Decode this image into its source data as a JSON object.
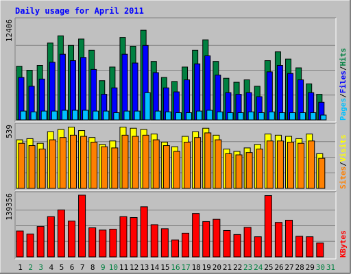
{
  "title": "Daily usage for April 2011",
  "colors": {
    "background": "#c0c0c0",
    "title": "#0000ff",
    "hits": "#008040",
    "files": "#0000ff",
    "pages": "#00c0ff",
    "visits": "#ffff00",
    "sites": "#ff8000",
    "kbytes": "#ff0000",
    "weekend_day": "#008040",
    "weekday_day": "#000000"
  },
  "panels": {
    "top": {
      "max_label": "12406",
      "legend": [
        "Pages",
        "/",
        "Files",
        "/",
        "Hits"
      ]
    },
    "middle": {
      "max_label": "539",
      "legend": [
        "Sites",
        "/",
        "Visits"
      ]
    },
    "bottom": {
      "max_label": "139356",
      "legend": [
        "KBytes"
      ]
    }
  },
  "chart_data": {
    "type": "bar",
    "title": "Daily usage for April 2011",
    "categories": [
      "1",
      "2",
      "3",
      "4",
      "5",
      "6",
      "7",
      "8",
      "9",
      "10",
      "11",
      "12",
      "13",
      "14",
      "15",
      "16",
      "17",
      "18",
      "19",
      "20",
      "21",
      "22",
      "23",
      "24",
      "25",
      "26",
      "27",
      "28",
      "29",
      "30",
      "31"
    ],
    "weekend_days": [
      "2",
      "3",
      "9",
      "10",
      "16",
      "17",
      "23",
      "24",
      "30",
      "31"
    ],
    "panels": [
      {
        "name": "top",
        "ylim": [
          0,
          12406
        ],
        "series": [
          {
            "name": "Hits",
            "values": [
              6700,
              6200,
              6800,
              9600,
              10500,
              9300,
              10100,
              8700,
              4900,
              6600,
              10300,
              9200,
              11200,
              7300,
              5300,
              4800,
              6600,
              8700,
              10000,
              7300,
              5200,
              4700,
              5000,
              4200,
              7400,
              8500,
              7600,
              6500,
              4500,
              3200,
              0
            ]
          },
          {
            "name": "Files",
            "values": [
              5300,
              4200,
              5100,
              7200,
              8200,
              7400,
              7800,
              6300,
              3200,
              4000,
              8200,
              7100,
              9300,
              5900,
              4000,
              3500,
              5000,
              7000,
              8000,
              5600,
              3400,
              3200,
              3400,
              2900,
              6000,
              6800,
              5800,
              5000,
              3400,
              2200,
              0
            ]
          },
          {
            "name": "Pages",
            "values": [
              1100,
              1000,
              1100,
              1100,
              1200,
              1200,
              1200,
              1100,
              1100,
              900,
              1100,
              1100,
              3400,
              1100,
              1000,
              900,
              900,
              1100,
              1200,
              1000,
              900,
              900,
              1000,
              900,
              1000,
              900,
              900,
              900,
              900,
              600,
              0
            ]
          }
        ]
      },
      {
        "name": "middle",
        "ylim": [
          0,
          539
        ],
        "series": [
          {
            "name": "Visits",
            "values": [
              420,
              430,
              390,
              490,
              510,
              530,
              500,
              440,
              380,
              410,
              530,
              520,
              510,
              470,
              400,
              360,
              450,
              490,
              520,
              460,
              340,
              320,
              350,
              380,
              470,
              460,
              450,
              430,
              470,
              300,
              0
            ]
          },
          {
            "name": "Sites",
            "values": [
              390,
              370,
              340,
              420,
              440,
              460,
              450,
              400,
              360,
              350,
              460,
              450,
              460,
              420,
              370,
              320,
              400,
              440,
              480,
              420,
              300,
              290,
              310,
              340,
              410,
              410,
              400,
              390,
              410,
              260,
              0
            ]
          }
        ]
      },
      {
        "name": "bottom",
        "ylim": [
          0,
          139356
        ],
        "series": [
          {
            "name": "KBytes",
            "values": [
              58000,
              51000,
              68000,
              90000,
              105000,
              80000,
              138000,
              65000,
              60000,
              62000,
              90000,
              88000,
              112000,
              72000,
              63000,
              38000,
              53000,
              97000,
              79000,
              84000,
              59000,
              50000,
              66000,
              45000,
              137000,
              77000,
              82000,
              46000,
              45000,
              31000,
              0
            ]
          }
        ]
      }
    ]
  }
}
